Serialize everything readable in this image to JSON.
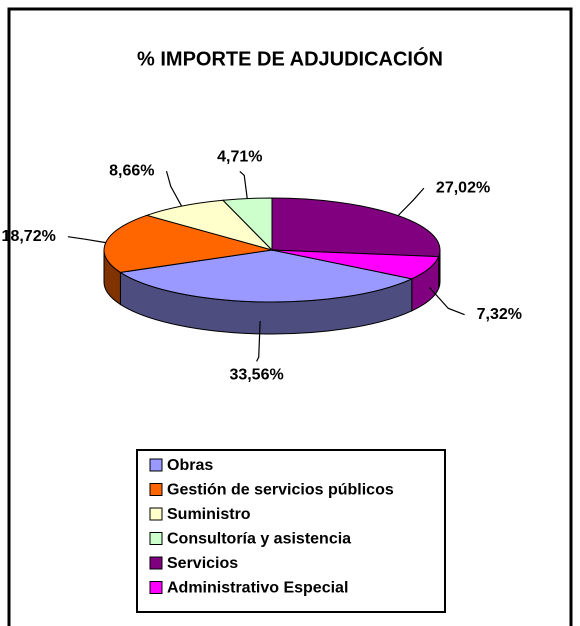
{
  "chart_data": {
    "type": "pie",
    "title": "% IMPORTE DE ADJUDICACIÓN",
    "categories": [
      "Obras",
      "Gestión de servicios públicos",
      "Suministro",
      "Consultoría y asistencia",
      "Servicios",
      "Administrativo Especial"
    ],
    "values": [
      33.56,
      18.72,
      8.66,
      4.71,
      27.02,
      7.32
    ],
    "value_labels": [
      "33,56%",
      "18,72%",
      "8,66%",
      "4,71%",
      "27,02%",
      "7,32%"
    ],
    "colors": [
      "#9999ff",
      "#ff6600",
      "#ffffcc",
      "#ccffcc",
      "#800080",
      "#ff00ff"
    ],
    "legend": "bottom"
  }
}
